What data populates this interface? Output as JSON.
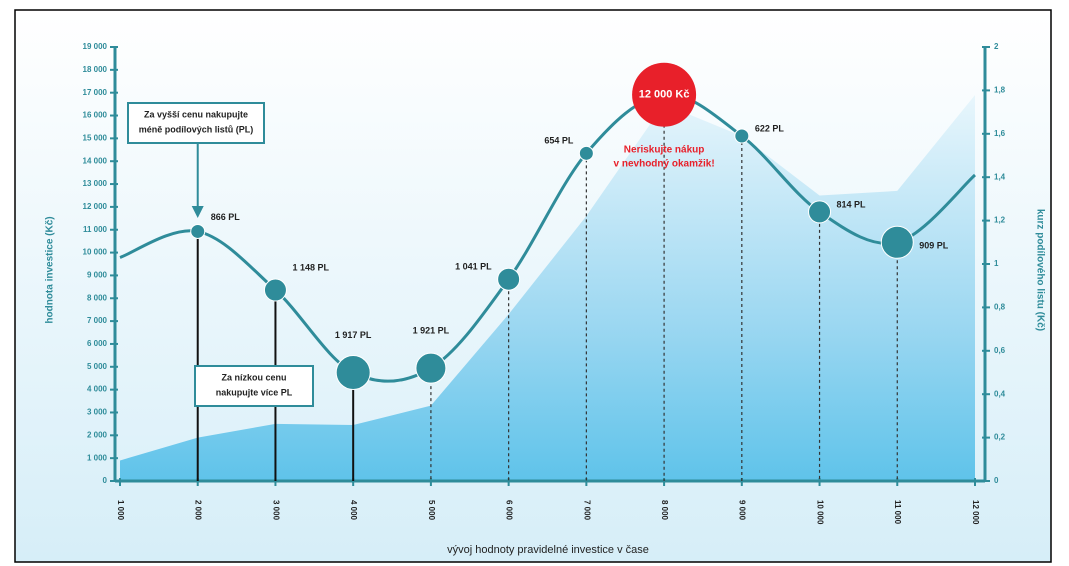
{
  "chart_data": {
    "type": "area-line",
    "y_axis_label": "hodnota investice (Kč)",
    "y2_axis_label": "kurz podílového listu (Kč)",
    "x_axis_label": "vývoj hodnoty pravidelné investice v čase",
    "categories": [
      "1 000",
      "2 000",
      "3 000",
      "4 000",
      "5 000",
      "6 000",
      "7 000",
      "8 000",
      "9 000",
      "10 000",
      "11 000",
      "12 000"
    ],
    "series": [
      {
        "color": "#5fc3ea",
        "values": [
          900,
          1900,
          2500,
          2450,
          3300,
          7300,
          11600,
          16500,
          15100,
          12500,
          12700,
          16900
        ]
      },
      {
        "color": "#2f8c9a",
        "axis": "y2",
        "values": [
          1.03,
          1.15,
          0.88,
          0.5,
          0.52,
          0.93,
          1.51,
          1.78,
          1.59,
          1.24,
          1.1,
          1.41
        ]
      }
    ],
    "point_labels": [
      null,
      "866 PL",
      "1 148 PL",
      "1 917 PL",
      "1 921 PL",
      "1 041 PL",
      "654 PL",
      "12 000 Kč",
      "622 PL",
      "814 PL",
      "909 PL",
      null
    ],
    "annotations": {
      "high": [
        "Za vyšší cenu nakupujte",
        "méně podílových listů (PL)"
      ],
      "low": [
        "Za nízkou cenu",
        "nakupujte více PL"
      ],
      "warning": [
        "Neriskujte nákup",
        "v nevhodný okamžik!"
      ]
    },
    "ylim": [
      0,
      19000
    ],
    "yticks": [
      0,
      {
        "value": 1000,
        "label": "1 000"
      },
      {
        "value": 2000,
        "label": "2 000"
      },
      {
        "value": 3000,
        "label": "3 000"
      },
      {
        "value": 4000,
        "label": "4 000"
      },
      {
        "value": 5000,
        "label": "5 000"
      },
      {
        "value": 6000,
        "label": "6 000"
      },
      {
        "value": 7000,
        "label": "7 000"
      },
      {
        "value": 8000,
        "label": "8 000"
      },
      {
        "value": 9000,
        "label": "9 000"
      },
      {
        "value": 10000,
        "label": "10 000"
      },
      {
        "value": 11000,
        "label": "11 000"
      },
      {
        "value": 12000,
        "label": "12 000"
      },
      {
        "value": 13000,
        "label": "13 000"
      },
      {
        "value": 14000,
        "label": "14 000"
      },
      {
        "value": 15000,
        "label": "15 000"
      },
      {
        "value": 16000,
        "label": "16 000"
      },
      {
        "value": 17000,
        "label": "17 000"
      },
      {
        "value": 18000,
        "label": "18 000"
      },
      {
        "value": 19000,
        "label": "19 000"
      }
    ],
    "y2lim": [
      0,
      2
    ],
    "y2ticks": [
      0,
      {
        "value": 0.2,
        "label": "0,2"
      },
      {
        "value": 0.4,
        "label": "0,4"
      },
      {
        "value": 0.6,
        "label": "0,6"
      },
      {
        "value": 0.8,
        "label": "0,8"
      },
      1,
      {
        "value": 1.2,
        "label": "1,2"
      },
      {
        "value": 1.4,
        "label": "1,4"
      },
      {
        "value": 1.6,
        "label": "1,6"
      },
      {
        "value": 1.8,
        "label": "1,8"
      },
      2
    ]
  }
}
